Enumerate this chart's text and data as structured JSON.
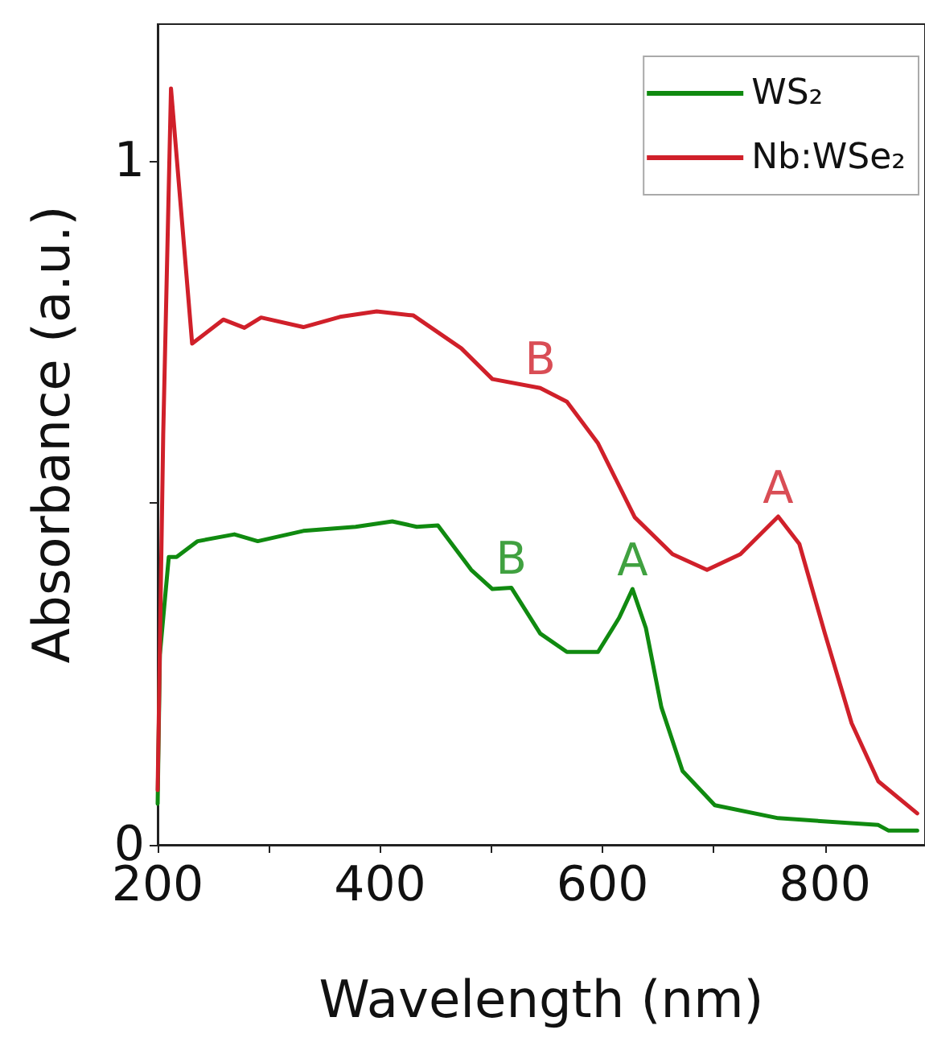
{
  "chart_data": {
    "type": "line",
    "xlabel": "Wavelength (nm)",
    "ylabel": "Absorbance (a.u.)",
    "xlim": [
      200,
      890
    ],
    "xticks": [
      200,
      {
        "value": 300,
        "label": null
      },
      400,
      {
        "value": 500,
        "label": null
      },
      600,
      {
        "value": 700,
        "label": null
      },
      800
    ],
    "ylim": [
      0,
      1.2
    ],
    "yticks": [
      0,
      {
        "value": 0.5,
        "label": null
      },
      1
    ],
    "grid": false,
    "legend": "top right",
    "marker": "none",
    "line_style": "solid",
    "series": [
      {
        "name": "WS₂",
        "color": "#108a10",
        "x": [
          200,
          202,
          210,
          217,
          236,
          269,
          290,
          331,
          378,
          411,
          433,
          452,
          482,
          501,
          518,
          544,
          568,
          596,
          615,
          627,
          639,
          653,
          672,
          701,
          758,
          848,
          857,
          883
        ],
        "values": [
          0.06,
          0.278,
          0.421,
          0.421,
          0.444,
          0.454,
          0.444,
          0.459,
          0.465,
          0.473,
          0.465,
          0.467,
          0.402,
          0.374,
          0.376,
          0.309,
          0.282,
          0.282,
          0.332,
          0.374,
          0.317,
          0.201,
          0.108,
          0.058,
          0.039,
          0.029,
          0.021,
          0.021
        ]
      },
      {
        "name": "Nb:WSe₂",
        "color": "#d0202a",
        "x": [
          200,
          205,
          212,
          231,
          259,
          278,
          293,
          331,
          364,
          397,
          430,
          473,
          501,
          544,
          568,
          596,
          629,
          663,
          694,
          724,
          758,
          777,
          800,
          824,
          848,
          883
        ],
        "values": [
          0.08,
          0.6,
          1.106,
          0.733,
          0.768,
          0.756,
          0.771,
          0.757,
          0.772,
          0.78,
          0.774,
          0.726,
          0.681,
          0.668,
          0.648,
          0.587,
          0.479,
          0.425,
          0.402,
          0.425,
          0.48,
          0.44,
          0.309,
          0.178,
          0.093,
          0.046
        ]
      }
    ],
    "annotations": [
      {
        "text": "B",
        "x": 544,
        "y": 0.668
      },
      {
        "text": "A",
        "x": 758,
        "y": 0.48
      },
      {
        "text": "B",
        "x": 518,
        "y": 0.376
      },
      {
        "text": "A",
        "x": 627,
        "y": 0.374
      }
    ]
  }
}
